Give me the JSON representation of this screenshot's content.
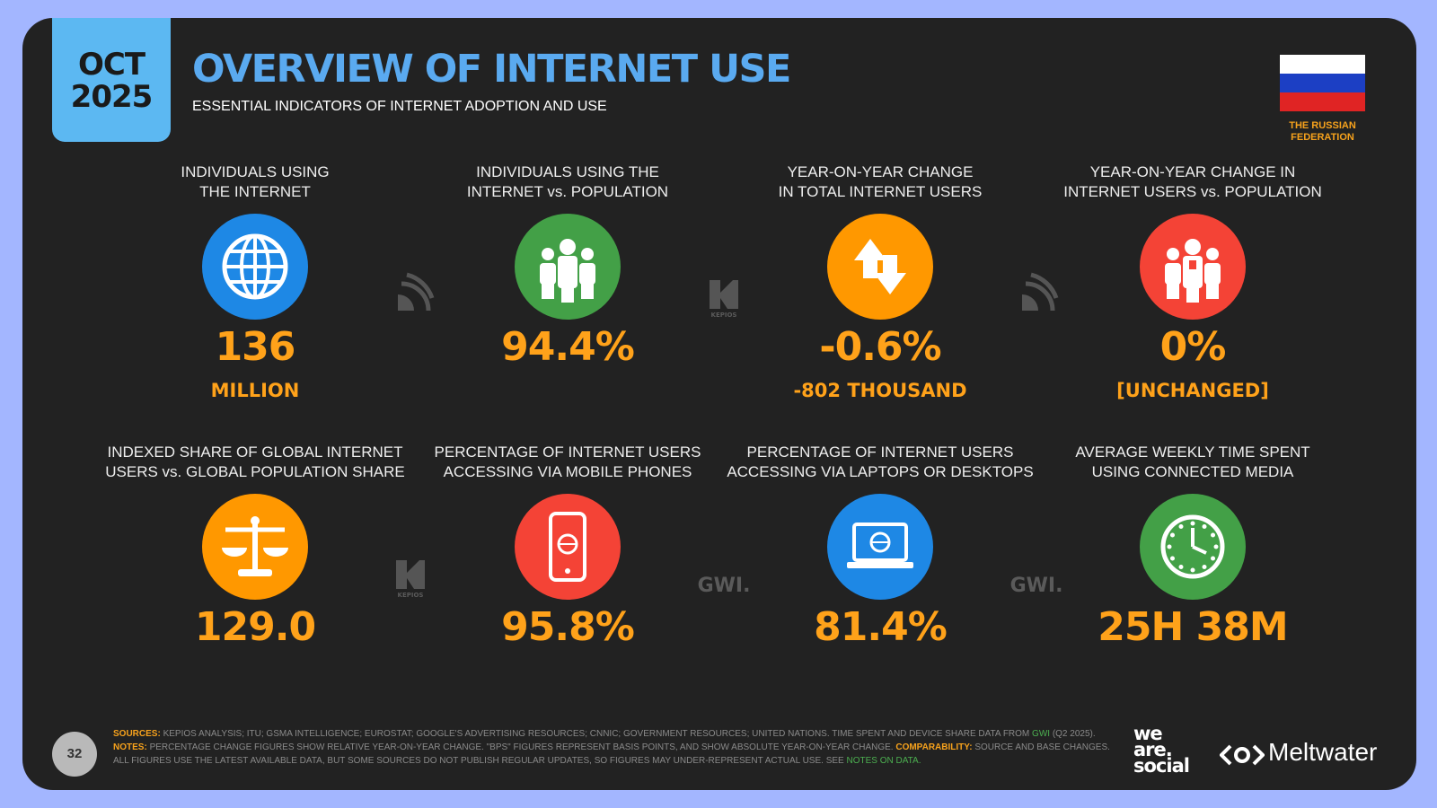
{
  "header": {
    "month": "OCT",
    "year": "2025",
    "title": "OVERVIEW OF INTERNET USE",
    "subtitle": "ESSENTIAL INDICATORS OF INTERNET ADOPTION AND USE"
  },
  "flag_label": [
    "THE RUSSIAN",
    "FEDERATION"
  ],
  "tiles": [
    {
      "label": [
        "INDIVIDUALS USING",
        "THE INTERNET"
      ],
      "value": "136",
      "sublabel": "MILLION"
    },
    {
      "label": [
        "INDIVIDUALS USING THE",
        "INTERNET vs. POPULATION"
      ],
      "value": "94.4%"
    },
    {
      "label": [
        "YEAR-ON-YEAR CHANGE",
        "IN TOTAL INTERNET USERS"
      ],
      "value": "-0.6%",
      "sublabel": "-802 THOUSAND"
    },
    {
      "label": [
        "YEAR-ON-YEAR CHANGE IN",
        "INTERNET USERS vs. POPULATION"
      ],
      "value": "0%",
      "sublabel": "[UNCHANGED]"
    },
    {
      "label": [
        "INDEXED SHARE OF GLOBAL INTERNET",
        "USERS vs. GLOBAL POPULATION SHARE"
      ],
      "value": "129.0"
    },
    {
      "label": [
        "PERCENTAGE OF INTERNET USERS",
        "ACCESSING VIA MOBILE PHONES"
      ],
      "value": "95.8%"
    },
    {
      "label": [
        "PERCENTAGE OF INTERNET USERS",
        "ACCESSING VIA LAPTOPS OR DESKTOPS"
      ],
      "value": "81.4%"
    },
    {
      "label": [
        "AVERAGE WEEKLY TIME SPENT",
        "USING CONNECTED MEDIA"
      ],
      "value": "25H 38M"
    }
  ],
  "source_labels": {
    "kepios": "KEPIOS",
    "gwi": "GWI."
  },
  "footer": {
    "page": "32",
    "sources_label": "SOURCES:",
    "sources_text": "KEPIOS ANALYSIS; ITU; GSMA INTELLIGENCE; EUROSTAT; GOOGLE'S ADVERTISING RESOURCES; CNNIC; GOVERNMENT RESOURCES; UNITED NATIONS. TIME SPENT AND DEVICE SHARE DATA FROM",
    "gwi_link": "GWI",
    "sources_date": "(Q2 2025).",
    "notes_label": "NOTES:",
    "notes_text": "PERCENTAGE CHANGE FIGURES SHOW RELATIVE YEAR-ON-YEAR CHANGE. \"BPS\" FIGURES REPRESENT BASIS POINTS, AND SHOW ABSOLUTE YEAR-ON-YEAR CHANGE.",
    "comparability_label": "COMPARABILITY:",
    "comparability_text": "SOURCE AND BASE CHANGES. ALL FIGURES USE THE LATEST AVAILABLE DATA, BUT SOME SOURCES DO NOT PUBLISH REGULAR UPDATES, SO FIGURES MAY UNDER-REPRESENT ACTUAL USE. SEE",
    "notes_link": "NOTES ON DATA."
  },
  "logos": {
    "we_are_social": [
      "we",
      "are.",
      "social"
    ],
    "meltwater": "Meltwater"
  }
}
